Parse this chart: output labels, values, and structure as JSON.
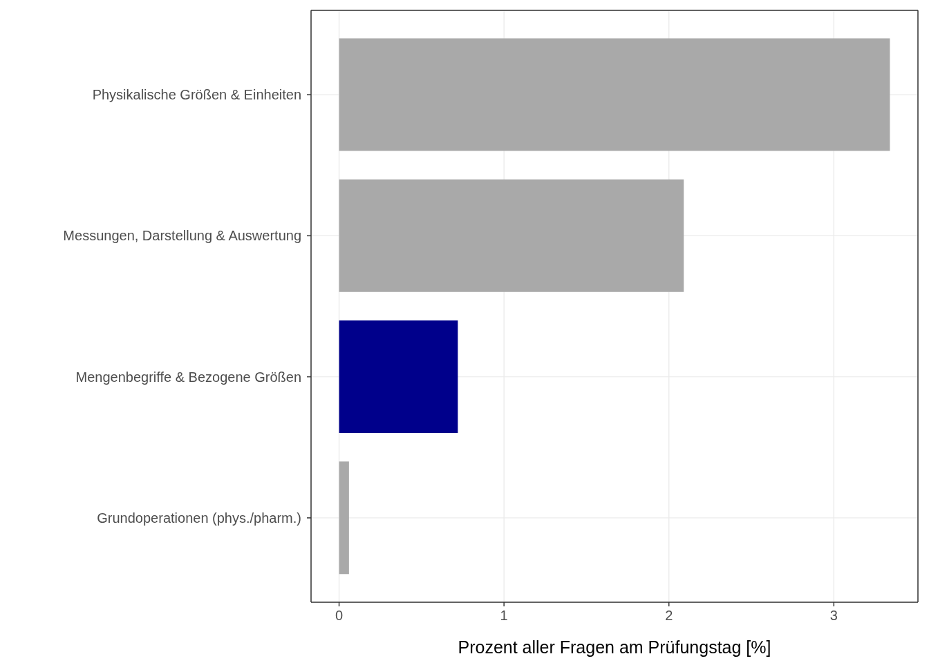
{
  "chart_data": {
    "type": "bar",
    "orientation": "horizontal",
    "categories": [
      "Physikalische Größen & Einheiten",
      "Messungen, Darstellung & Auswertung",
      "Mengenbegriffe & Bezogene Größen",
      "Grundoperationen (phys./pharm.)"
    ],
    "values": [
      3.34,
      2.09,
      0.72,
      0.06
    ],
    "colors": [
      "#a9a9a9",
      "#a9a9a9",
      "#00008b",
      "#a9a9a9"
    ],
    "xlabel": "Prozent aller Fragen am Prüfungstag [%]",
    "xlim": [
      -0.17,
      3.51
    ],
    "xticks": [
      0,
      1,
      2,
      3
    ],
    "grid": true
  }
}
